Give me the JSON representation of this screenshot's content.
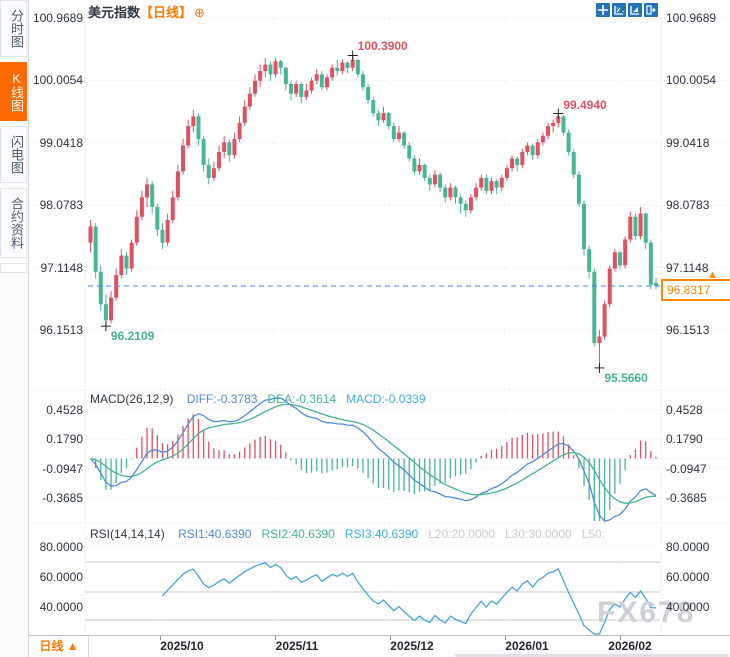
{
  "header": {
    "symbol": "美元指数",
    "period_tag": "【日线】",
    "add_icon": "⊕"
  },
  "toolbar": {
    "icons": [
      "crosshair",
      "zoom-range",
      "zoom-in",
      "exit"
    ]
  },
  "sidebar": {
    "items": [
      {
        "label": "分时图",
        "active": false
      },
      {
        "label": "K线图",
        "active": true
      },
      {
        "label": "闪电图",
        "active": false
      },
      {
        "label": "合约资料",
        "active": false
      }
    ]
  },
  "main_chart": {
    "axis_labels": [
      "100.9689",
      "100.0054",
      "99.0418",
      "98.0783",
      "97.1148",
      "96.1513"
    ],
    "current_price": "96.8317",
    "current_arrow": "▲"
  },
  "macd_panel": {
    "title": "MACD(26,12,9)",
    "values": [
      {
        "label": "DIFF:-0.3783",
        "color": "blue"
      },
      {
        "label": "DEA:-0.3614",
        "color": "green"
      },
      {
        "label": "MACD:-0.0339",
        "color": "cyan"
      }
    ],
    "axis_labels": [
      "0.4528",
      "0.1790",
      "-0.0947",
      "-0.3685"
    ]
  },
  "rsi_panel": {
    "title": "RSI(14,14,14)",
    "values": [
      {
        "label": "RSI1:40.6390",
        "color": "blue"
      },
      {
        "label": "RSI2:40.6390",
        "color": "green"
      },
      {
        "label": "RSI3:40.6390",
        "color": "cyan"
      },
      {
        "label": "L20:20.0000",
        "color": "muted"
      },
      {
        "label": "L30:30.0000",
        "color": "muted"
      },
      {
        "label": "L50:",
        "color": "muted"
      }
    ],
    "axis_labels": [
      "80.0000",
      "60.0000",
      "40.0000"
    ],
    "sun_icon": "✹"
  },
  "bottom_bar": {
    "period_label": "日线 ▲",
    "months": [
      "2025/10",
      "2025/11",
      "2025/12",
      "2026/01",
      "2026/02"
    ]
  },
  "watermark": "FX678",
  "colors": {
    "up": "#e05060",
    "down": "#47b694",
    "accent": "#ff8800",
    "diff_line": "#4f8ad8",
    "dea_line": "#45b38e",
    "rsi_line": "#45a5d6",
    "dashed_price_line": "#3d87e0",
    "grid": "#dcdee4",
    "marker_cross": "#222222"
  },
  "chart_data": {
    "type": "candlestick",
    "title": "美元指数 日线",
    "x_axis_months": [
      "2025/10",
      "2025/11",
      "2025/12",
      "2026/01",
      "2026/02"
    ],
    "y_axis_labels": [
      100.9689,
      100.0054,
      99.0418,
      98.0783,
      97.1148,
      96.1513
    ],
    "last_close": 96.8317,
    "marked_extremes": [
      {
        "index": 51,
        "price": 100.39,
        "label": "100.3900",
        "kind": "high"
      },
      {
        "index": 91,
        "price": 99.494,
        "label": "99.4940",
        "kind": "high"
      },
      {
        "index": 3,
        "price": 96.2109,
        "label": "96.2109",
        "kind": "low"
      },
      {
        "index": 99,
        "price": 95.566,
        "label": "95.5660",
        "kind": "low"
      }
    ],
    "indicators": {
      "macd": {
        "params": [
          26,
          12,
          9
        ],
        "diff": -0.3783,
        "dea": -0.3614,
        "macd": -0.0339,
        "axis": [
          0.4528,
          0.179,
          -0.0947,
          -0.3685
        ]
      },
      "rsi": {
        "params": [
          14,
          14,
          14
        ],
        "rsi1": 40.639,
        "rsi2": 40.639,
        "rsi3": 40.639,
        "levels": {
          "l20": 20.0,
          "l30": 30.0,
          "l50": 50.0
        },
        "axis": [
          80.0,
          60.0,
          40.0
        ]
      }
    },
    "candles": [
      [
        97.5,
        97.85,
        97.35,
        97.75
      ],
      [
        97.75,
        97.8,
        96.95,
        97.05
      ],
      [
        97.05,
        97.15,
        96.45,
        96.55
      ],
      [
        96.55,
        96.7,
        96.21,
        96.3
      ],
      [
        96.3,
        96.75,
        96.25,
        96.65
      ],
      [
        96.65,
        97.1,
        96.6,
        97.0
      ],
      [
        97.0,
        97.4,
        96.95,
        97.3
      ],
      [
        97.3,
        97.35,
        97.0,
        97.1
      ],
      [
        97.1,
        97.55,
        97.05,
        97.5
      ],
      [
        97.5,
        98.0,
        97.45,
        97.9
      ],
      [
        97.9,
        98.3,
        97.85,
        98.2
      ],
      [
        98.2,
        98.5,
        98.05,
        98.4
      ],
      [
        98.4,
        98.45,
        97.95,
        98.05
      ],
      [
        98.05,
        98.1,
        97.6,
        97.7
      ],
      [
        97.7,
        97.8,
        97.4,
        97.5
      ],
      [
        97.5,
        97.95,
        97.45,
        97.85
      ],
      [
        97.85,
        98.3,
        97.8,
        98.2
      ],
      [
        98.2,
        98.7,
        98.15,
        98.6
      ],
      [
        98.6,
        99.1,
        98.55,
        99.0
      ],
      [
        99.0,
        99.4,
        98.95,
        99.3
      ],
      [
        99.3,
        99.55,
        99.2,
        99.45
      ],
      [
        99.45,
        99.5,
        99.0,
        99.1
      ],
      [
        99.1,
        99.15,
        98.6,
        98.7
      ],
      [
        98.7,
        98.8,
        98.4,
        98.5
      ],
      [
        98.5,
        98.75,
        98.45,
        98.65
      ],
      [
        98.65,
        99.0,
        98.6,
        98.9
      ],
      [
        98.9,
        99.15,
        98.8,
        99.05
      ],
      [
        99.05,
        99.1,
        98.75,
        98.85
      ],
      [
        98.85,
        99.2,
        98.8,
        99.1
      ],
      [
        99.1,
        99.45,
        99.05,
        99.35
      ],
      [
        99.35,
        99.7,
        99.3,
        99.6
      ],
      [
        99.6,
        99.9,
        99.55,
        99.8
      ],
      [
        99.8,
        100.1,
        99.75,
        100.0
      ],
      [
        100.0,
        100.25,
        99.9,
        100.15
      ],
      [
        100.15,
        100.35,
        100.05,
        100.25
      ],
      [
        100.25,
        100.3,
        100.0,
        100.1
      ],
      [
        100.1,
        100.35,
        100.05,
        100.3
      ],
      [
        100.3,
        100.32,
        100.1,
        100.2
      ],
      [
        100.2,
        100.22,
        99.85,
        99.95
      ],
      [
        99.95,
        100.0,
        99.7,
        99.8
      ],
      [
        99.8,
        100.0,
        99.75,
        99.95
      ],
      [
        99.95,
        99.98,
        99.65,
        99.75
      ],
      [
        99.75,
        99.95,
        99.7,
        99.85
      ],
      [
        99.85,
        100.05,
        99.8,
        100.0
      ],
      [
        100.0,
        100.18,
        99.95,
        100.1
      ],
      [
        100.1,
        100.15,
        99.85,
        99.9
      ],
      [
        99.9,
        100.1,
        99.85,
        100.05
      ],
      [
        100.05,
        100.25,
        100.0,
        100.2
      ],
      [
        100.2,
        100.32,
        100.08,
        100.15
      ],
      [
        100.15,
        100.33,
        100.1,
        100.28
      ],
      [
        100.28,
        100.3,
        100.12,
        100.2
      ],
      [
        100.2,
        100.39,
        100.15,
        100.32
      ],
      [
        100.32,
        100.34,
        100.05,
        100.1
      ],
      [
        100.1,
        100.15,
        99.85,
        99.9
      ],
      [
        99.9,
        99.95,
        99.65,
        99.7
      ],
      [
        99.7,
        99.75,
        99.45,
        99.5
      ],
      [
        99.5,
        99.55,
        99.3,
        99.39
      ],
      [
        99.39,
        99.6,
        99.35,
        99.5
      ],
      [
        99.5,
        99.52,
        99.25,
        99.3
      ],
      [
        99.3,
        99.35,
        99.05,
        99.1
      ],
      [
        99.1,
        99.3,
        99.05,
        99.2
      ],
      [
        99.2,
        99.22,
        98.95,
        99.0
      ],
      [
        99.0,
        99.05,
        98.75,
        98.8
      ],
      [
        98.8,
        98.85,
        98.55,
        98.6
      ],
      [
        98.6,
        98.8,
        98.55,
        98.7
      ],
      [
        98.7,
        98.72,
        98.45,
        98.5
      ],
      [
        98.5,
        98.55,
        98.3,
        98.4
      ],
      [
        98.4,
        98.62,
        98.35,
        98.55
      ],
      [
        98.55,
        98.58,
        98.28,
        98.35
      ],
      [
        98.35,
        98.4,
        98.12,
        98.2
      ],
      [
        98.2,
        98.42,
        98.15,
        98.35
      ],
      [
        98.35,
        98.38,
        98.1,
        98.2
      ],
      [
        98.2,
        98.25,
        97.95,
        98.1
      ],
      [
        98.1,
        98.15,
        97.9,
        98.0
      ],
      [
        98.0,
        98.25,
        97.95,
        98.2
      ],
      [
        98.2,
        98.42,
        98.15,
        98.35
      ],
      [
        98.35,
        98.55,
        98.3,
        98.5
      ],
      [
        98.5,
        98.55,
        98.25,
        98.3
      ],
      [
        98.3,
        98.5,
        98.25,
        98.45
      ],
      [
        98.45,
        98.48,
        98.25,
        98.35
      ],
      [
        98.35,
        98.55,
        98.3,
        98.5
      ],
      [
        98.5,
        98.7,
        98.45,
        98.65
      ],
      [
        98.65,
        98.85,
        98.6,
        98.8
      ],
      [
        98.8,
        98.82,
        98.6,
        98.7
      ],
      [
        98.7,
        98.95,
        98.65,
        98.9
      ],
      [
        98.9,
        99.05,
        98.85,
        99.0
      ],
      [
        99.0,
        99.02,
        98.78,
        98.85
      ],
      [
        98.85,
        99.1,
        98.8,
        99.05
      ],
      [
        99.05,
        99.2,
        99.0,
        99.15
      ],
      [
        99.15,
        99.35,
        99.1,
        99.3
      ],
      [
        99.3,
        99.4,
        99.2,
        99.35
      ],
      [
        99.35,
        99.494,
        99.28,
        99.45
      ],
      [
        99.45,
        99.47,
        99.15,
        99.2
      ],
      [
        99.2,
        99.25,
        98.85,
        98.9
      ],
      [
        98.9,
        98.95,
        98.5,
        98.55
      ],
      [
        98.55,
        98.6,
        98.05,
        98.1
      ],
      [
        98.1,
        98.15,
        97.3,
        97.4
      ],
      [
        97.4,
        97.45,
        96.95,
        97.05
      ],
      [
        97.05,
        97.1,
        95.9,
        95.95
      ],
      [
        95.95,
        96.15,
        95.566,
        96.05
      ],
      [
        96.05,
        96.6,
        96.0,
        96.55
      ],
      [
        96.55,
        97.15,
        96.5,
        97.1
      ],
      [
        97.1,
        97.4,
        97.05,
        97.35
      ],
      [
        97.35,
        97.38,
        97.1,
        97.15
      ],
      [
        97.15,
        97.6,
        97.1,
        97.55
      ],
      [
        97.55,
        97.98,
        97.5,
        97.9
      ],
      [
        97.9,
        97.95,
        97.55,
        97.6
      ],
      [
        97.6,
        98.05,
        97.55,
        97.95
      ],
      [
        97.95,
        97.97,
        97.4,
        97.5
      ],
      [
        97.5,
        97.55,
        96.78,
        96.85
      ],
      [
        96.88,
        96.95,
        96.78,
        96.8317
      ]
    ]
  }
}
